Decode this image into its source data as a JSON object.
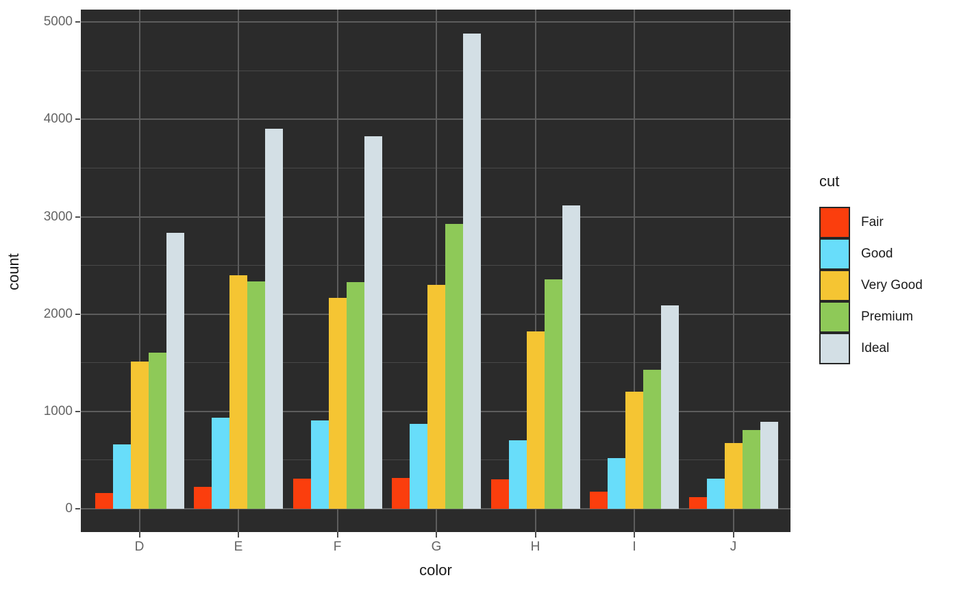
{
  "chart_data": {
    "type": "bar",
    "mode": "grouped-dodge",
    "title": "",
    "xlabel": "color",
    "ylabel": "count",
    "legend_title": "cut",
    "legend_position": "right",
    "categories": [
      "D",
      "E",
      "F",
      "G",
      "H",
      "I",
      "J"
    ],
    "series": [
      {
        "name": "Fair",
        "color": "#FB3E0D",
        "values": [
          163,
          224,
          312,
          314,
          303,
          175,
          119
        ]
      },
      {
        "name": "Good",
        "color": "#68DDFA",
        "values": [
          662,
          933,
          909,
          871,
          702,
          522,
          307
        ]
      },
      {
        "name": "Very Good",
        "color": "#F5C533",
        "values": [
          1513,
          2400,
          2164,
          2299,
          1824,
          1204,
          678
        ]
      },
      {
        "name": "Premium",
        "color": "#8EC958",
        "values": [
          1603,
          2337,
          2331,
          2924,
          2360,
          1428,
          808
        ]
      },
      {
        "name": "Ideal",
        "color": "#D3DFE5",
        "values": [
          2834,
          3903,
          3826,
          4884,
          3115,
          2093,
          896
        ]
      }
    ],
    "y_ticks": [
      0,
      1000,
      2000,
      3000,
      4000,
      5000
    ],
    "y_minor_ticks": [
      500,
      1500,
      2500,
      3500,
      4500
    ],
    "ylim": [
      -244,
      5128
    ],
    "grid": true
  },
  "style": {
    "background": "#FFFFFF",
    "panel_background": "#2B2B2B",
    "grid_major": "#5D5D5D",
    "grid_minor": "#494949",
    "axis_text": "#646464",
    "title_text": "#1A1A1A",
    "tick_mark": "#4F4F4F",
    "legend_key_border": "#262626"
  }
}
